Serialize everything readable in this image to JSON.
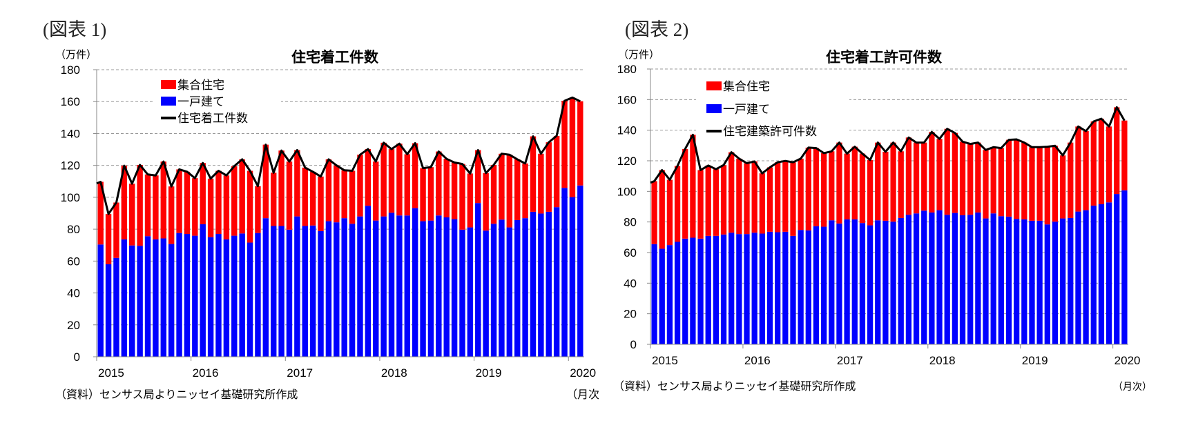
{
  "figures": [
    {
      "label": "(図表 1)",
      "unit": "（万件）",
      "source": "（資料）センサス局よりニッセイ基礎研究所作成",
      "freq": "（月次"
    },
    {
      "label": "(図表 2)",
      "unit": "（万件）",
      "source": "（資料）センサス局よりニッセイ基礎研究所作成",
      "freq": "（月次）"
    }
  ],
  "colors": {
    "multi_family": "#ff0000",
    "single_family": "#0000ff",
    "total_line": "#000000",
    "grid": "#999999"
  },
  "chart_data": [
    {
      "type": "bar",
      "stacked": true,
      "title": "住宅着工件数",
      "ylabel": "（万件）",
      "xlabel": "（月次",
      "ylim": [
        0,
        180
      ],
      "yticks": [
        0,
        20,
        40,
        60,
        80,
        100,
        120,
        140,
        160,
        180
      ],
      "xticks": [
        "2015",
        "2016",
        "2017",
        "2018",
        "2019",
        "2020"
      ],
      "x_start": "2015-01",
      "x_end": "2020-02",
      "grid": true,
      "legend_position": "top-left",
      "series": [
        {
          "name": "集合住宅",
          "kind": "bar",
          "values": [
            39.3,
            31.5,
            34.7,
            46.2,
            38.7,
            50.7,
            38.7,
            40.1,
            48.2,
            36.1,
            39.9,
            39,
            36.1,
            38.4,
            36.7,
            39.6,
            40.1,
            43.6,
            46.5,
            45,
            29.4,
            46.1,
            33.4,
            47.3,
            42.7,
            41.6,
            36.6,
            33.7,
            34.2,
            38.8,
            35.7,
            30,
            33.2,
            38.7,
            35.5,
            37,
            46.2,
            39.9,
            45,
            38.4,
            40.7,
            33.3,
            33.5,
            40.1,
            36.7,
            35.5,
            41.2,
            33.8,
            33.2,
            36.1,
            36.9,
            41.3,
            45.6,
            38.1,
            34.3,
            47.3,
            37.5,
            43.6,
            44.7,
            54.6,
            62.4,
            52.8
          ]
        },
        {
          "name": "一戸建て",
          "kind": "bar",
          "values": [
            70.4,
            58,
            62,
            73.6,
            69.8,
            69.6,
            75.6,
            73.6,
            74.2,
            70.7,
            77.6,
            77,
            75.9,
            83.1,
            75,
            77,
            73.6,
            75.9,
            77.3,
            71.6,
            77.6,
            86.9,
            82,
            82,
            79.7,
            88,
            82,
            82.3,
            78.8,
            85,
            84.3,
            86.9,
            83.4,
            88,
            94.7,
            85.4,
            88,
            90.3,
            88.6,
            88.6,
            93.2,
            85,
            85.4,
            88.6,
            87.4,
            86.3,
            79.7,
            81.1,
            96.4,
            79.1,
            83.4,
            86,
            81.1,
            85.7,
            86.9,
            90.9,
            89.8,
            90.9,
            93.8,
            105.9,
            100.1,
            107.4
          ]
        },
        {
          "name": "住宅着工件数",
          "kind": "line",
          "values": [
            109.7,
            89.5,
            96.7,
            119.8,
            108.5,
            120.3,
            114.3,
            113.7,
            122.4,
            106.8,
            117.5,
            116,
            112,
            121.5,
            111.7,
            116.6,
            113.7,
            119.5,
            123.8,
            116.6,
            107,
            133,
            115.4,
            129.3,
            122.4,
            129.6,
            118.6,
            116,
            113,
            123.8,
            120,
            116.9,
            116.6,
            126.7,
            130.2,
            122.4,
            134.2,
            130.2,
            133.6,
            127,
            133.9,
            118.3,
            118.9,
            128.7,
            124.1,
            121.8,
            120.9,
            114.9,
            129.6,
            115.2,
            120.3,
            127.3,
            126.7,
            123.8,
            121.2,
            138.2,
            127.3,
            134.5,
            138.5,
            160.5,
            162.5,
            160.2
          ]
        }
      ]
    },
    {
      "type": "bar",
      "stacked": true,
      "title": "住宅着工許可件数",
      "ylabel": "（万件）",
      "xlabel": "（月次）",
      "ylim": [
        0,
        180
      ],
      "yticks": [
        0,
        20,
        40,
        60,
        80,
        100,
        120,
        140,
        160,
        180
      ],
      "xticks": [
        "2015",
        "2016",
        "2017",
        "2018",
        "2019",
        "2020"
      ],
      "x_start": "2015-01",
      "x_end": "2020-02",
      "grid": true,
      "legend_position": "top-left",
      "series": [
        {
          "name": "集合住宅",
          "kind": "bar",
          "values": [
            41.2,
            51.4,
            42.7,
            49.6,
            58.6,
            67.3,
            44.8,
            46,
            43.6,
            45.4,
            52.6,
            49.3,
            46.3,
            46.6,
            39.4,
            42.1,
            45.7,
            46.3,
            48.1,
            46.6,
            54.1,
            51.1,
            48.1,
            45.1,
            52.9,
            43,
            47.5,
            45.4,
            42.7,
            50.8,
            45.1,
            51.7,
            43.6,
            50.5,
            46.3,
            44.5,
            52.6,
            46.6,
            56.2,
            52.3,
            48.1,
            46.3,
            45.7,
            44.8,
            43.3,
            44.5,
            50.2,
            52,
            50.2,
            48.1,
            48.1,
            50.8,
            49.6,
            41.2,
            49.3,
            55.6,
            51.7,
            55,
            55.9,
            49.6,
            56.7,
            45.6
          ]
        },
        {
          "name": "一戸建て",
          "kind": "bar",
          "values": [
            65.5,
            62.5,
            64.9,
            67,
            69.1,
            69.7,
            69.1,
            70.9,
            70.9,
            71.8,
            73,
            72.1,
            72.1,
            73,
            72.4,
            73.6,
            73.3,
            73.6,
            70.9,
            74.8,
            74.5,
            77.2,
            76.9,
            81.1,
            79,
            81.7,
            81.7,
            79.3,
            77.8,
            81.1,
            80.8,
            80.2,
            82.6,
            84.7,
            85.6,
            87.4,
            86.2,
            87.7,
            84.7,
            85.9,
            84.4,
            84.7,
            86.2,
            82.3,
            85.6,
            83.8,
            83.5,
            82,
            81.7,
            80.8,
            80.8,
            78.4,
            80.2,
            82.3,
            82.6,
            86.8,
            87.7,
            90.7,
            91.6,
            92.8,
            98.3,
            100.7
          ]
        },
        {
          "name": "住宅建築許可件数",
          "kind": "line",
          "values": [
            106.7,
            113.9,
            107.6,
            116.6,
            127.7,
            137,
            113.9,
            116.9,
            114.5,
            117.2,
            125.6,
            121.4,
            118.4,
            119.6,
            111.8,
            115.7,
            119,
            119.9,
            119,
            121.4,
            128.6,
            128.3,
            125,
            126.2,
            131.9,
            124.7,
            129.2,
            124.7,
            120.5,
            131.9,
            125.9,
            131.9,
            126.2,
            135.2,
            131.9,
            131.9,
            138.8,
            134.3,
            140.9,
            138.2,
            132.5,
            131,
            131.9,
            127.1,
            128.9,
            128.3,
            133.7,
            134,
            131.9,
            128.9,
            128.9,
            129.2,
            129.8,
            123.5,
            131.9,
            142.4,
            139.4,
            145.7,
            147.5,
            142.4,
            155,
            146.3
          ]
        }
      ]
    }
  ]
}
